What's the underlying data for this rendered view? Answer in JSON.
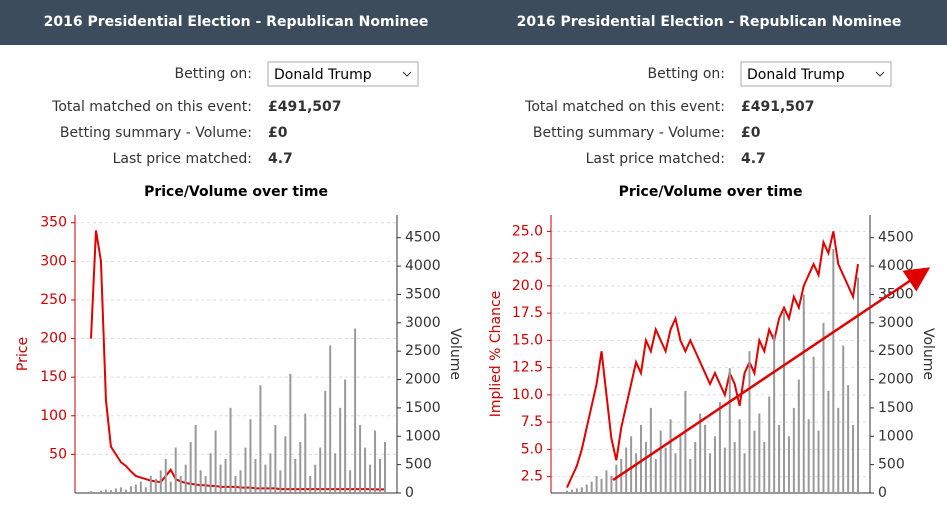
{
  "panels": [
    {
      "header": "2016 Presidential Election - Republican Nominee",
      "rows": [
        {
          "label": "Betting on:",
          "value": "Donald Trump"
        },
        {
          "label": "Total matched on this event:",
          "value": "£491,507"
        },
        {
          "label": "Betting summary - Volume:",
          "value": "£0"
        },
        {
          "label": "Last price matched:",
          "value": "4.7"
        }
      ]
    },
    {
      "header": "2016 Presidential Election - Republican Nominee",
      "rows": [
        {
          "label": "Betting on:",
          "value": "Donald Trump"
        },
        {
          "label": "Total matched on this event:",
          "value": "£491,507"
        },
        {
          "label": "Betting summary - Volume:",
          "value": "£0"
        },
        {
          "label": "Last price matched:",
          "value": "4.7"
        }
      ]
    }
  ],
  "chart_data": [
    {
      "type": "line",
      "title": "Price/Volume over time",
      "grid": true,
      "ylim": [
        0,
        360
      ],
      "yticks": [
        50,
        100,
        150,
        200,
        250,
        300,
        350
      ],
      "y2lim": [
        0,
        4900
      ],
      "y2ticks": [
        0,
        500,
        1000,
        1500,
        2000,
        2500,
        3000,
        3500,
        4000,
        4500
      ],
      "series": [
        {
          "name": "Price",
          "color": "#e00000",
          "values": [
            200,
            340,
            300,
            120,
            60,
            50,
            40,
            35,
            28,
            22,
            20,
            18,
            16,
            15,
            14,
            22,
            30,
            18,
            15,
            13,
            12,
            11,
            10,
            10,
            9,
            9,
            8,
            8,
            8,
            8,
            7,
            7,
            7,
            6,
            6,
            6,
            6,
            6,
            5,
            5,
            5,
            5,
            5,
            5,
            5,
            5,
            5,
            5,
            5,
            5,
            5,
            5,
            5,
            5,
            5,
            5,
            5,
            4.7,
            4.7,
            4.7
          ]
        },
        {
          "name": "Volume",
          "color": "#999999",
          "axis": "y2",
          "mark": "bar",
          "values": [
            30,
            20,
            40,
            60,
            50,
            80,
            100,
            60,
            120,
            150,
            200,
            100,
            300,
            250,
            400,
            600,
            200,
            800,
            300,
            500,
            900,
            1200,
            400,
            300,
            700,
            1100,
            500,
            600,
            1500,
            300,
            400,
            800,
            1300,
            600,
            1900,
            500,
            700,
            1200,
            400,
            1000,
            2100,
            600,
            900,
            1400,
            300,
            500,
            800,
            1800,
            2600,
            700,
            1500,
            2000,
            400,
            2900,
            1200,
            800,
            500,
            1100,
            600,
            900
          ]
        }
      ]
    },
    {
      "type": "line",
      "title": "Price/Volume over time",
      "grid": true,
      "ylim": [
        1,
        26.5
      ],
      "yticks": [
        2.5,
        {
          "value": 5,
          "label": "5.0"
        },
        7.5,
        {
          "value": 10,
          "label": "10.0"
        },
        12.5,
        {
          "value": 15,
          "label": "15.0"
        },
        17.5,
        {
          "value": 20,
          "label": "20.0"
        },
        22.5,
        {
          "value": 25,
          "label": "25.0"
        }
      ],
      "y2lim": [
        0,
        4900
      ],
      "y2ticks": [
        0,
        500,
        1000,
        1500,
        2000,
        2500,
        3000,
        3500,
        4000,
        4500
      ],
      "series": [
        {
          "name": "Implied % Chance",
          "color": "#e00000",
          "values": [
            1.5,
            2.5,
            3.5,
            5,
            7,
            9,
            11,
            14,
            10,
            6,
            4,
            7,
            9,
            11,
            13,
            12,
            15,
            14,
            16,
            15,
            14,
            16,
            17,
            15,
            14,
            15,
            14,
            13,
            12,
            11,
            12,
            11,
            10,
            12,
            11,
            9,
            12,
            13,
            12,
            15,
            14,
            16,
            15,
            17,
            18,
            17,
            19,
            18,
            20,
            21,
            22,
            21,
            24,
            23,
            25,
            22,
            21,
            20,
            19,
            22
          ]
        },
        {
          "name": "Volume",
          "color": "#999999",
          "axis": "y2",
          "mark": "bar",
          "values": [
            40,
            60,
            80,
            100,
            150,
            200,
            300,
            250,
            400,
            300,
            500,
            600,
            800,
            1000,
            700,
            1200,
            900,
            1500,
            600,
            1100,
            800,
            1300,
            700,
            1000,
            1800,
            600,
            900,
            1400,
            1200,
            700,
            1000,
            1600,
            800,
            2200,
            900,
            1300,
            700,
            2500,
            1100,
            1400,
            900,
            1700,
            2800,
            1200,
            3200,
            1000,
            1500,
            2000,
            3500,
            1300,
            2400,
            1100,
            3000,
            1800,
            4300,
            1500,
            2600,
            1900,
            1200,
            3800
          ]
        }
      ]
    }
  ]
}
